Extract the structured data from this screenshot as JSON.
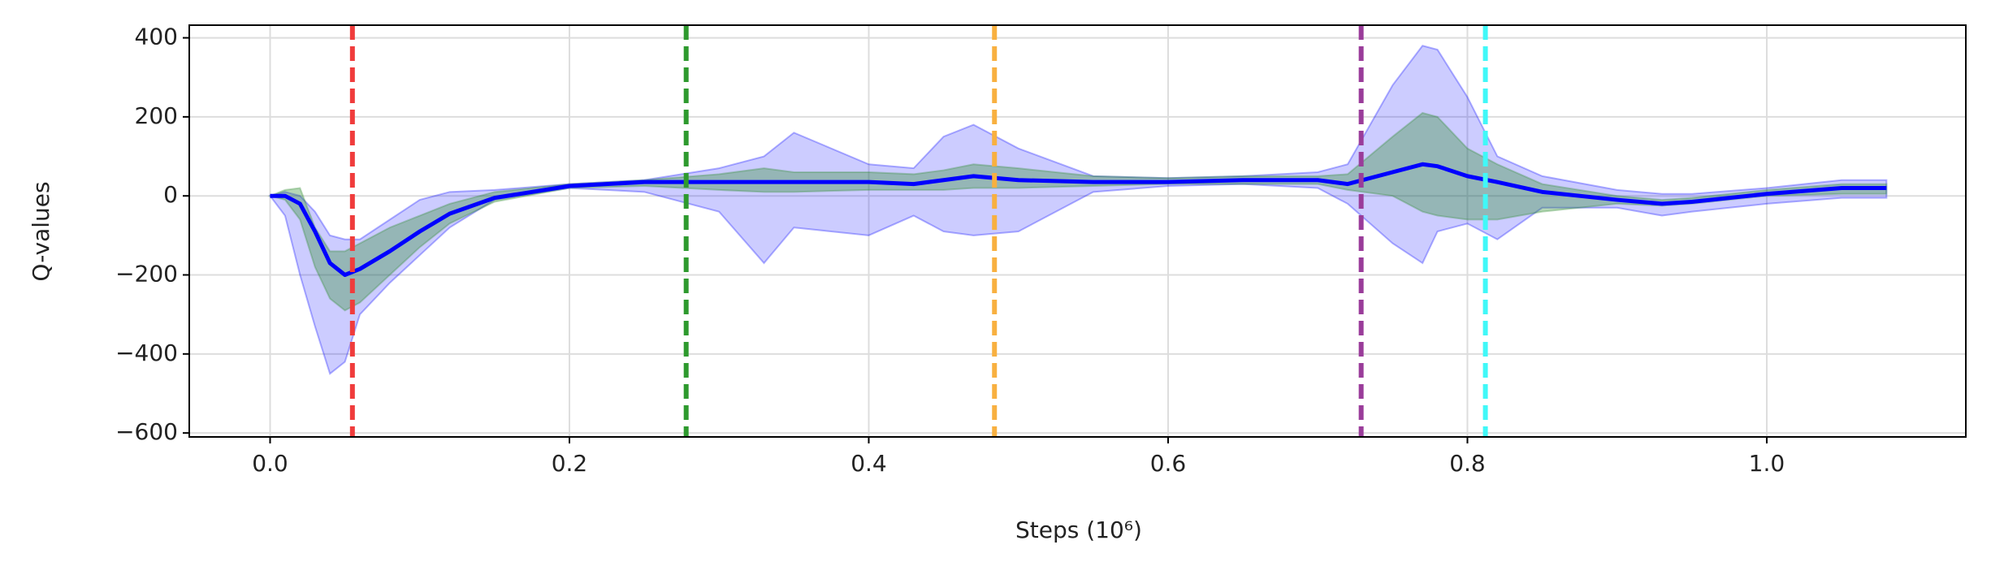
{
  "chart_data": {
    "type": "line",
    "xlabel": "Steps (10⁶)",
    "ylabel": "Q-values",
    "xlim": [
      -0.054,
      1.133
    ],
    "ylim": [
      -610,
      432
    ],
    "xticks": [
      {
        "value": 0,
        "label": "0.0"
      },
      0.2,
      0.4,
      0.6,
      0.8,
      {
        "value": 1,
        "label": "1.0"
      }
    ],
    "yticks": [
      {
        "value": -600,
        "label": "−600"
      },
      {
        "value": -400,
        "label": "−400"
      },
      {
        "value": -200,
        "label": "−200"
      },
      0,
      200,
      400
    ],
    "grid": true,
    "x": [
      0,
      0.01,
      0.02,
      0.03,
      0.04,
      0.05,
      0.06,
      0.08,
      0.1,
      0.12,
      0.15,
      0.2,
      0.25,
      0.3,
      0.33,
      0.35,
      0.4,
      0.43,
      0.45,
      0.47,
      0.5,
      0.55,
      0.6,
      0.65,
      0.7,
      0.72,
      0.75,
      0.77,
      0.78,
      0.8,
      0.82,
      0.85,
      0.9,
      0.93,
      0.95,
      1.0,
      1.05,
      1.08
    ],
    "bands": [
      {
        "color": "#0000ff",
        "opacity": 0.2,
        "lower": [
          0,
          -50,
          -200,
          -330,
          -450,
          -420,
          -300,
          -220,
          -150,
          -80,
          -10,
          20,
          10,
          -40,
          -170,
          -80,
          -100,
          -50,
          -90,
          -100,
          -90,
          10,
          25,
          30,
          20,
          -20,
          -120,
          -170,
          -90,
          -70,
          -110,
          -30,
          -30,
          -50,
          -40,
          -20,
          -5,
          -5
        ],
        "upper": [
          0,
          10,
          0,
          -40,
          -100,
          -110,
          -110,
          -60,
          -10,
          10,
          15,
          30,
          40,
          70,
          100,
          160,
          80,
          70,
          150,
          180,
          120,
          50,
          45,
          50,
          60,
          80,
          280,
          380,
          370,
          250,
          100,
          50,
          15,
          5,
          5,
          20,
          40,
          40
        ]
      },
      {
        "color": "#2e8b2e",
        "opacity": 0.35,
        "lower": [
          0,
          -10,
          -60,
          -180,
          -260,
          -290,
          -270,
          -200,
          -130,
          -70,
          -15,
          20,
          25,
          15,
          10,
          10,
          15,
          15,
          15,
          20,
          20,
          25,
          30,
          30,
          30,
          15,
          0,
          -40,
          -50,
          -60,
          -60,
          -40,
          -20,
          -25,
          -20,
          0,
          5,
          5
        ],
        "upper": [
          0,
          15,
          20,
          -80,
          -140,
          -140,
          -120,
          -80,
          -50,
          -20,
          10,
          30,
          40,
          55,
          70,
          60,
          60,
          55,
          65,
          80,
          70,
          50,
          45,
          50,
          50,
          55,
          150,
          210,
          200,
          120,
          80,
          30,
          0,
          -10,
          -5,
          15,
          30,
          30
        ]
      }
    ],
    "series": [
      {
        "color": "#0000ff",
        "values": [
          0,
          0,
          -20,
          -90,
          -170,
          -200,
          -185,
          -140,
          -90,
          -45,
          -5,
          25,
          35,
          35,
          35,
          35,
          35,
          30,
          40,
          50,
          40,
          35,
          35,
          40,
          40,
          30,
          60,
          80,
          75,
          50,
          35,
          10,
          -10,
          -20,
          -15,
          5,
          20,
          20
        ]
      }
    ],
    "vlines": [
      {
        "x": 0.055,
        "color": "#f03c3c"
      },
      {
        "x": 0.278,
        "color": "#2e9a2e"
      },
      {
        "x": 0.484,
        "color": "#f8b040"
      },
      {
        "x": 0.729,
        "color": "#9a3c9a"
      },
      {
        "x": 0.812,
        "color": "#40f8f8"
      }
    ]
  }
}
